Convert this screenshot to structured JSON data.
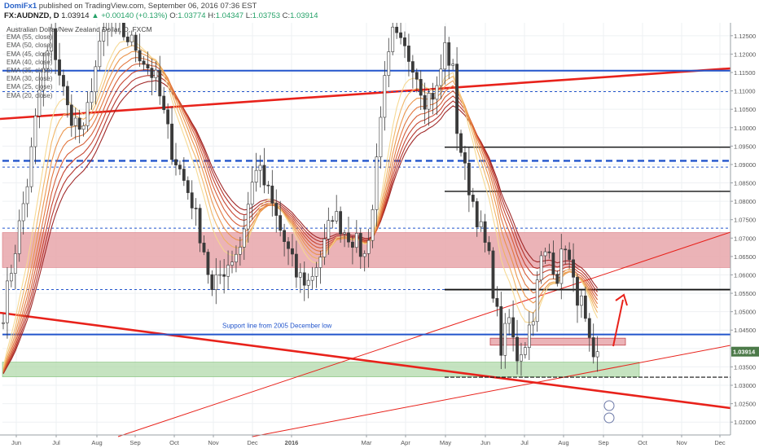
{
  "header": {
    "author": "DomiFx1",
    "published": "published on TradingView.com, September 06, 2016 07:36 EST",
    "symbol": "FX:AUDNZD, D",
    "last": "1.03914",
    "change_arrow": "▲",
    "change": "+0.00140 (+0.13%)",
    "o_label": "O:",
    "o_value": "1.03774",
    "h_label": "H:",
    "h_value": "1.04347",
    "l_label": "L:",
    "l_value": "1.03753",
    "c_label": "C:",
    "c_value": "1.03914"
  },
  "legend": {
    "title": "Australian Dollar/New Zealand Dollar, D, FXCM",
    "indicators": [
      "EMA (55, close)",
      "EMA (50, close)",
      "EMA (45, close)",
      "EMA (40, close)",
      "EMA (35, close)",
      "EMA (30, close)",
      "EMA (25, close)",
      "EMA (20, close)"
    ]
  },
  "colors": {
    "support_blue": "#2255cc",
    "trend_red": "#e8221b",
    "zone_red": "#e8a6aa",
    "zone_green": "#b7dcb0",
    "candle": "#3a3a3a",
    "ema_fast": "#f5d78e",
    "ema_slow": "#9b1d1d",
    "last_price_bg": "#4c7a49"
  },
  "chart_data": {
    "type": "candlestick",
    "x_labels": [
      "Jun",
      "Jul",
      "Aug",
      "Sep",
      "Oct",
      "Nov",
      "Dec",
      "2016",
      "Mar",
      "Apr",
      "May",
      "Jun",
      "Jul",
      "Aug",
      "Sep",
      "Oct",
      "Nov",
      "Dec"
    ],
    "y_ticks": [
      "1.12500",
      "1.12000",
      "1.11500",
      "1.11000",
      "1.10500",
      "1.10000",
      "1.09500",
      "1.09000",
      "1.08500",
      "1.08000",
      "1.07500",
      "1.07000",
      "1.06500",
      "1.06000",
      "1.05500",
      "1.05000",
      "1.04500",
      "1.04000",
      "1.03500",
      "1.03000",
      "1.02500",
      "1.02000"
    ],
    "ylim": [
      1.0165,
      1.1285
    ],
    "last_price_label": "1.03914",
    "annotation": "Support line from 2005 December low",
    "price_path": [
      [
        0,
        1.05
      ],
      [
        6,
        1.085
      ],
      [
        9,
        1.11
      ],
      [
        12,
        1.125
      ],
      [
        16,
        1.105
      ],
      [
        20,
        1.098
      ],
      [
        22,
        1.112
      ],
      [
        26,
        1.13
      ],
      [
        33,
        1.122
      ],
      [
        38,
        1.113
      ],
      [
        42,
        1.094
      ],
      [
        47,
        1.08
      ],
      [
        50,
        1.067
      ],
      [
        52,
        1.055
      ],
      [
        54,
        1.06
      ],
      [
        59,
        1.068
      ],
      [
        63,
        1.09
      ],
      [
        66,
        1.082
      ],
      [
        69,
        1.072
      ],
      [
        73,
        1.06
      ],
      [
        76,
        1.058
      ],
      [
        80,
        1.068
      ],
      [
        82,
        1.077
      ],
      [
        85,
        1.072
      ],
      [
        87,
        1.07
      ],
      [
        90,
        1.065
      ],
      [
        92,
        1.078
      ],
      [
        94,
        1.105
      ],
      [
        97,
        1.125
      ],
      [
        99,
        1.122
      ],
      [
        102,
        1.118
      ],
      [
        105,
        1.108
      ],
      [
        108,
        1.11
      ],
      [
        110,
        1.122
      ],
      [
        112,
        1.115
      ],
      [
        113,
        1.1
      ],
      [
        115,
        1.088
      ],
      [
        117,
        1.08
      ],
      [
        119,
        1.072
      ],
      [
        121,
        1.064
      ],
      [
        123,
        1.049
      ],
      [
        124,
        1.04
      ],
      [
        126,
        1.048
      ],
      [
        127,
        1.042
      ],
      [
        128,
        1.038
      ],
      [
        130,
        1.042
      ],
      [
        132,
        1.05
      ],
      [
        134,
        1.064
      ],
      [
        136,
        1.066
      ],
      [
        138,
        1.06
      ],
      [
        140,
        1.069
      ],
      [
        142,
        1.057
      ],
      [
        144,
        1.052
      ],
      [
        146,
        1.04
      ],
      [
        147,
        1.035
      ],
      [
        148,
        1.039
      ]
    ],
    "emas": [
      {
        "name": "EMA (55, close)",
        "period": 55
      },
      {
        "name": "EMA (50, close)",
        "period": 50
      },
      {
        "name": "EMA (45, close)",
        "period": 45
      },
      {
        "name": "EMA (40, close)",
        "period": 40
      },
      {
        "name": "EMA (35, close)",
        "period": 35
      },
      {
        "name": "EMA (30, close)",
        "period": 30
      },
      {
        "name": "EMA (25, close)",
        "period": 25
      },
      {
        "name": "EMA (20, close)",
        "period": 20
      }
    ],
    "horizontal_lines": [
      {
        "price": 1.1155,
        "style": "solid-blue"
      },
      {
        "price": 1.1098,
        "style": "dotted-blue"
      },
      {
        "price": 1.091,
        "style": "dashed-blue"
      },
      {
        "price": 1.0893,
        "style": "dotted-blue"
      },
      {
        "price": 1.0727,
        "style": "dotted-blue"
      },
      {
        "price": 1.056,
        "style": "dotted-blue"
      },
      {
        "price": 1.0438,
        "style": "solid-blue"
      }
    ],
    "resistance_lines": [
      {
        "price": 1.0947
      },
      {
        "price": 1.0827
      },
      {
        "price": 1.056
      },
      {
        "price": 1.0322
      }
    ],
    "zones": [
      {
        "name": "red-zone",
        "from": 1.062,
        "to": 1.0715
      },
      {
        "name": "green-zone",
        "from": 1.0323,
        "to": 1.0363
      },
      {
        "name": "small-red-box",
        "from": 1.0409,
        "to": 1.0428
      }
    ]
  }
}
